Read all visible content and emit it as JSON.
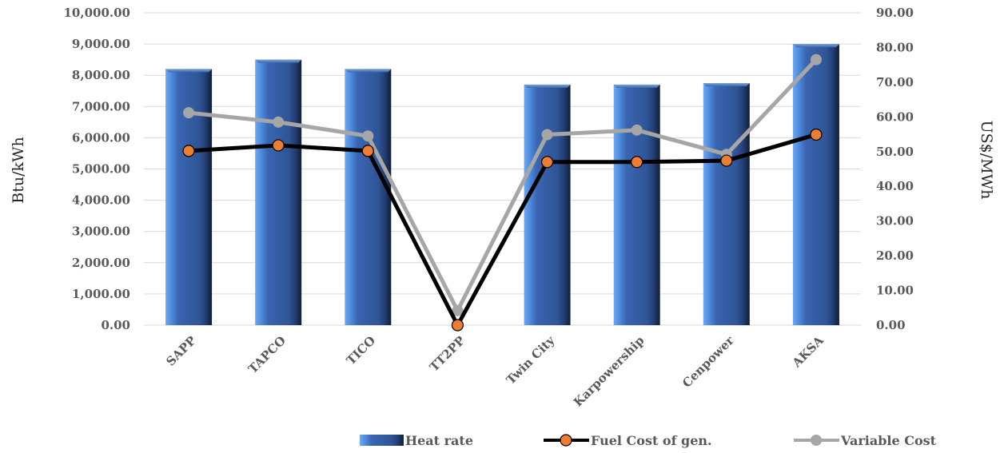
{
  "chart_data": {
    "type": "bar",
    "categories": [
      "SAPP",
      "TAPCO",
      "TICO",
      "TT2PP",
      "Twin City",
      "Karpowership",
      "Cenpower",
      "AKSA"
    ],
    "series": [
      {
        "name": "Heat rate",
        "type": "bar",
        "axis": "left",
        "values": [
          8200,
          8500,
          8200,
          0,
          7700,
          7700,
          7750,
          9000
        ],
        "color": "#2f5597"
      },
      {
        "name": "Fuel Cost of gen.",
        "type": "line",
        "axis": "right",
        "values": [
          50.2,
          51.8,
          50.2,
          0,
          47.0,
          47.0,
          47.4,
          54.9
        ],
        "color": "#000000",
        "marker_color": "#ed7d31"
      },
      {
        "name": "Variable Cost",
        "type": "line",
        "axis": "right",
        "values": [
          61.2,
          58.5,
          54.5,
          4.2,
          54.9,
          56.2,
          49.2,
          76.5
        ],
        "color": "#a6a6a6",
        "marker_color": "#a6a6a6"
      }
    ],
    "ylabel": "Btu/kWh",
    "y2label": "US$/MWh",
    "ylim": [
      0,
      10000
    ],
    "y2lim": [
      0,
      90
    ],
    "yticks": [
      "0.00",
      "1,000.00",
      "2,000.00",
      "3,000.00",
      "4,000.00",
      "5,000.00",
      "6,000.00",
      "7,000.00",
      "8,000.00",
      "9,000.00",
      "10,000.00"
    ],
    "y2ticks": [
      "0.00",
      "10.00",
      "20.00",
      "30.00",
      "40.00",
      "50.00",
      "60.00",
      "70.00",
      "80.00",
      "90.00"
    ],
    "grid": true,
    "legend_position": "bottom-right"
  }
}
